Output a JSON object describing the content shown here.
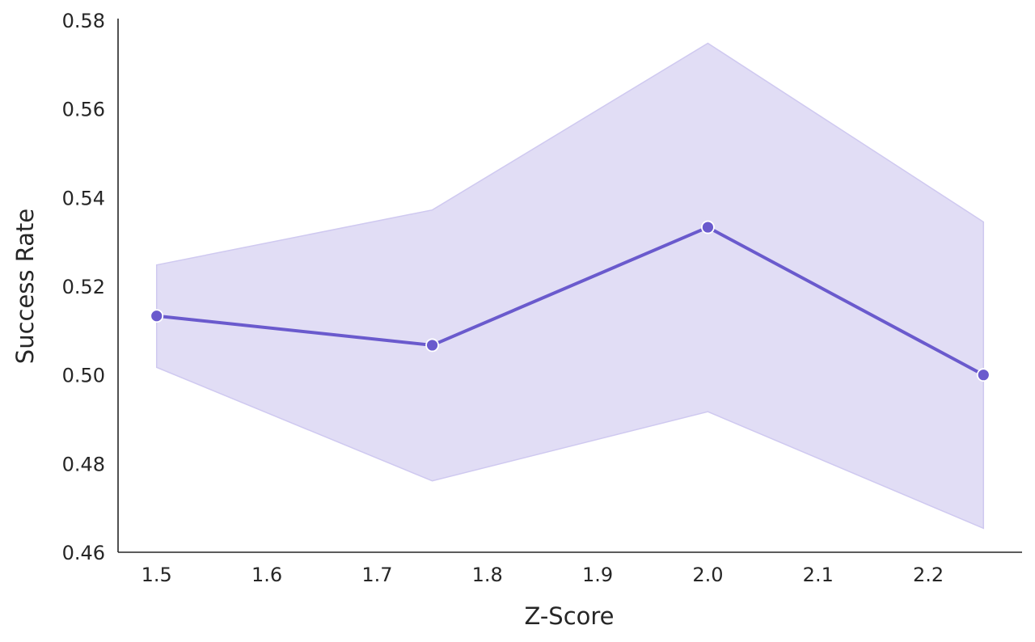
{
  "chart_data": {
    "type": "line",
    "title": "",
    "xlabel": "Z-Score",
    "ylabel": "Success Rate",
    "xlim": [
      1.465,
      2.285
    ],
    "ylim": [
      0.46,
      0.58
    ],
    "x_ticks": [
      "1.5",
      "1.6",
      "1.7",
      "1.8",
      "1.9",
      "2.0",
      "2.1",
      "2.2"
    ],
    "y_ticks": [
      "0.46",
      "0.48",
      "0.50",
      "0.52",
      "0.54",
      "0.56",
      "0.58"
    ],
    "grid": false,
    "legend": "none",
    "series": [
      {
        "x": [
          1.5,
          1.75,
          2.0,
          2.25
        ],
        "y": [
          0.5133,
          0.5067,
          0.5333,
          0.5
        ],
        "ci_lower": [
          0.5017,
          0.4761,
          0.4917,
          0.4654
        ],
        "ci_upper": [
          0.5248,
          0.5372,
          0.5748,
          0.5345
        ],
        "color": "#6a5acd",
        "band_color": "#e1ddf5",
        "marker": "circle"
      }
    ]
  }
}
